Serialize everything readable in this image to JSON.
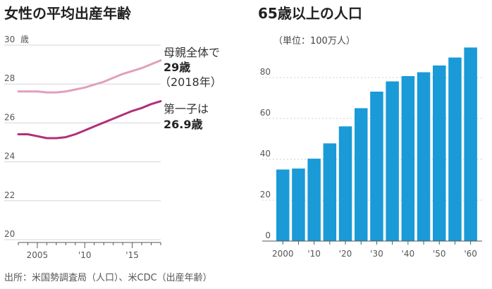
{
  "chart_data": [
    {
      "type": "line",
      "title": "女性の平均出産年齢",
      "unit_label": "歳",
      "ylim": [
        20,
        30
      ],
      "y_ticks": [
        20,
        22,
        24,
        26,
        28,
        30
      ],
      "xlim": [
        2003,
        2018
      ],
      "x_ticks": [
        {
          "value": 2005,
          "label": "2005"
        },
        {
          "value": 2010,
          "label": "'10"
        },
        {
          "value": 2015,
          "label": "'15"
        }
      ],
      "series": [
        {
          "name": "母親全体",
          "color": "#e0a0bd",
          "x": [
            2003,
            2004,
            2005,
            2006,
            2007,
            2008,
            2009,
            2010,
            2011,
            2012,
            2013,
            2014,
            2015,
            2016,
            2017,
            2018
          ],
          "y": [
            27.4,
            27.4,
            27.4,
            27.35,
            27.35,
            27.4,
            27.5,
            27.6,
            27.75,
            27.9,
            28.1,
            28.3,
            28.45,
            28.6,
            28.8,
            29.0
          ]
        },
        {
          "name": "第一子",
          "color": "#b0307a",
          "x": [
            2003,
            2004,
            2005,
            2006,
            2007,
            2008,
            2009,
            2010,
            2011,
            2012,
            2013,
            2014,
            2015,
            2016,
            2017,
            2018
          ],
          "y": [
            25.2,
            25.2,
            25.1,
            25.0,
            25.0,
            25.05,
            25.2,
            25.4,
            25.6,
            25.8,
            26.0,
            26.2,
            26.4,
            26.55,
            26.75,
            26.9
          ]
        }
      ],
      "annotations": {
        "all_line1": "母親全体で",
        "all_line2": "29歳",
        "all_line3": "（2018年）",
        "first_line1": "第一子は",
        "first_line2": "26.9歳"
      }
    },
    {
      "type": "bar",
      "title": "65歳以上の人口",
      "note": "（単位：100万人）",
      "color": "#1a9ad6",
      "ylim": [
        0,
        100
      ],
      "y_ticks": [
        0,
        20,
        40,
        60,
        80
      ],
      "categories": [
        "2000",
        "",
        "'10",
        "",
        "'20",
        "",
        "'30",
        "",
        "'40",
        "",
        "'50",
        "",
        "'60"
      ],
      "values": [
        35,
        35.5,
        40.3,
        47.8,
        56.1,
        65,
        73.1,
        78.1,
        80.7,
        82.6,
        85.9,
        89.8,
        94.7
      ]
    }
  ],
  "source": "出所：米国勢調査局（人口）、米CDC（出産年齢）"
}
